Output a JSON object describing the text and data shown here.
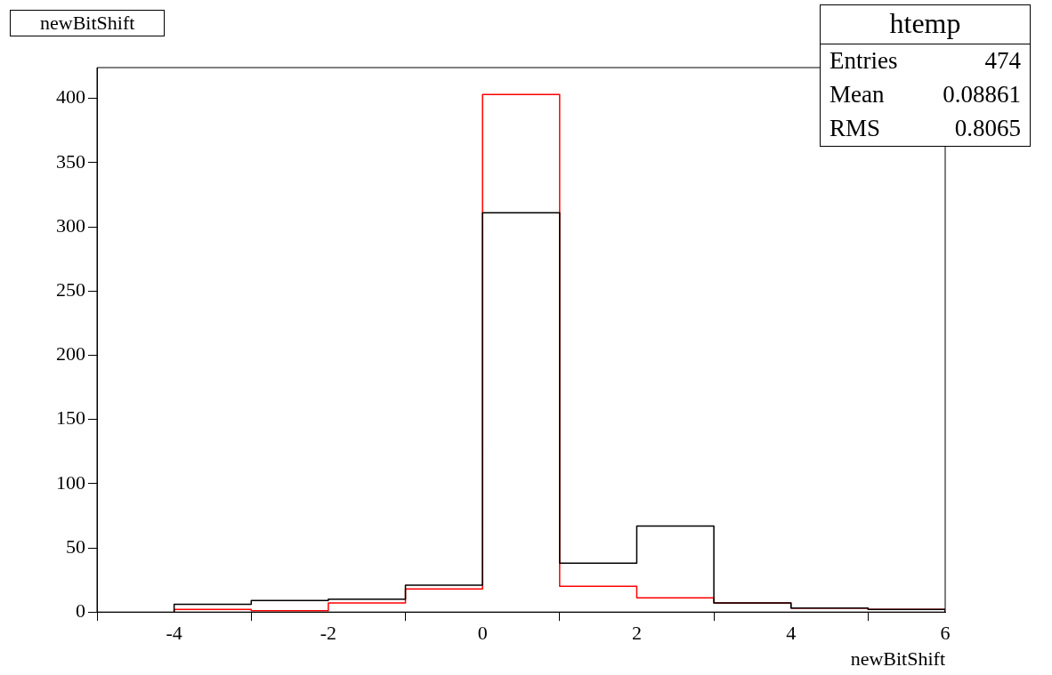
{
  "chart_data": {
    "type": "histogram",
    "title": "newBitShift",
    "xlabel": "newBitShift",
    "bins": [
      -4,
      -3,
      -2,
      -1,
      0,
      1,
      2,
      3,
      4,
      5,
      6
    ],
    "series": [
      {
        "color": "#000000",
        "values": [
          6,
          9,
          10,
          21,
          311,
          38,
          67,
          7,
          3,
          2
        ]
      },
      {
        "color": "#ff0000",
        "values": [
          2,
          1,
          7,
          18,
          403,
          20,
          11,
          7,
          3,
          2
        ]
      }
    ],
    "xlim": [
      -5,
      6
    ],
    "xticks": [
      -4,
      -2,
      0,
      2,
      4,
      6
    ],
    "ylim": [
      0,
      424
    ],
    "yticks": [
      0,
      50,
      100,
      150,
      200,
      250,
      300,
      350,
      400
    ],
    "grid": false,
    "legend": false,
    "annotations": [
      "htemp",
      "Entries 474",
      "Mean 0.08861",
      "RMS 0.8065"
    ]
  }
}
